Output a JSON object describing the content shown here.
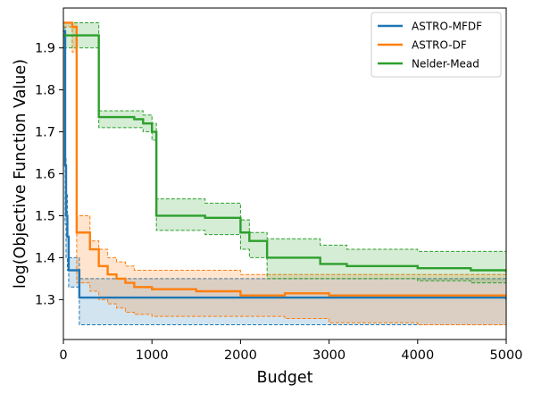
{
  "chart_data": {
    "type": "line",
    "xlabel": "Budget",
    "ylabel": "log(Objective Function Value)",
    "xlim": [
      0,
      5000
    ],
    "ylim": [
      1.205,
      1.995
    ],
    "xticks": [
      0,
      1000,
      2000,
      3000,
      4000,
      5000
    ],
    "xtick_labels": [
      "0",
      "1000",
      "2000",
      "3000",
      "4000",
      "5000"
    ],
    "yticks": [
      1.3,
      1.4,
      1.5,
      1.6,
      1.7,
      1.8,
      1.9
    ],
    "ytick_labels": [
      "1.3",
      "1.4",
      "1.5",
      "1.6",
      "1.7",
      "1.8",
      "1.9"
    ],
    "grid": false,
    "legend_position": "top-right",
    "series": [
      {
        "name": "ASTRO-MFDF",
        "color": "#1f77b4",
        "fill_color": "#1f77b4",
        "x": [
          0,
          20,
          30,
          45,
          60,
          180,
          5000
        ],
        "y": [
          1.94,
          1.62,
          1.5,
          1.45,
          1.37,
          1.305,
          1.3
        ],
        "upper": [
          1.95,
          1.64,
          1.55,
          1.45,
          1.4,
          1.35,
          1.35
        ],
        "lower": [
          1.9,
          1.48,
          1.4,
          1.37,
          1.33,
          1.24,
          1.24
        ]
      },
      {
        "name": "ASTRO-DF",
        "color": "#ff7f0e",
        "fill_color": "#ff7f0e",
        "x": [
          0,
          100,
          150,
          300,
          400,
          500,
          600,
          700,
          800,
          1000,
          1500,
          2000,
          2500,
          3000,
          4000,
          5000
        ],
        "y": [
          1.96,
          1.95,
          1.46,
          1.42,
          1.38,
          1.36,
          1.35,
          1.34,
          1.33,
          1.325,
          1.32,
          1.31,
          1.315,
          1.31,
          1.31,
          1.31
        ],
        "upper": [
          1.96,
          1.96,
          1.5,
          1.44,
          1.42,
          1.4,
          1.39,
          1.38,
          1.37,
          1.37,
          1.37,
          1.36,
          1.36,
          1.36,
          1.36,
          1.36
        ],
        "lower": [
          1.95,
          1.89,
          1.34,
          1.32,
          1.3,
          1.29,
          1.28,
          1.27,
          1.265,
          1.26,
          1.26,
          1.26,
          1.255,
          1.245,
          1.24,
          1.24
        ]
      },
      {
        "name": "Nelder-Mead",
        "color": "#2ca02c",
        "fill_color": "#2ca02c",
        "x": [
          0,
          400,
          800,
          900,
          1000,
          1050,
          1600,
          2000,
          2100,
          2300,
          2900,
          3200,
          4000,
          4600,
          5000
        ],
        "y": [
          1.93,
          1.735,
          1.73,
          1.72,
          1.7,
          1.5,
          1.495,
          1.46,
          1.44,
          1.4,
          1.385,
          1.38,
          1.375,
          1.37,
          1.365
        ],
        "upper": [
          1.96,
          1.75,
          1.75,
          1.74,
          1.72,
          1.54,
          1.53,
          1.49,
          1.46,
          1.445,
          1.43,
          1.42,
          1.415,
          1.415,
          1.415
        ],
        "lower": [
          1.9,
          1.71,
          1.71,
          1.7,
          1.68,
          1.465,
          1.455,
          1.42,
          1.4,
          1.35,
          1.35,
          1.35,
          1.345,
          1.34,
          1.34
        ]
      }
    ]
  }
}
